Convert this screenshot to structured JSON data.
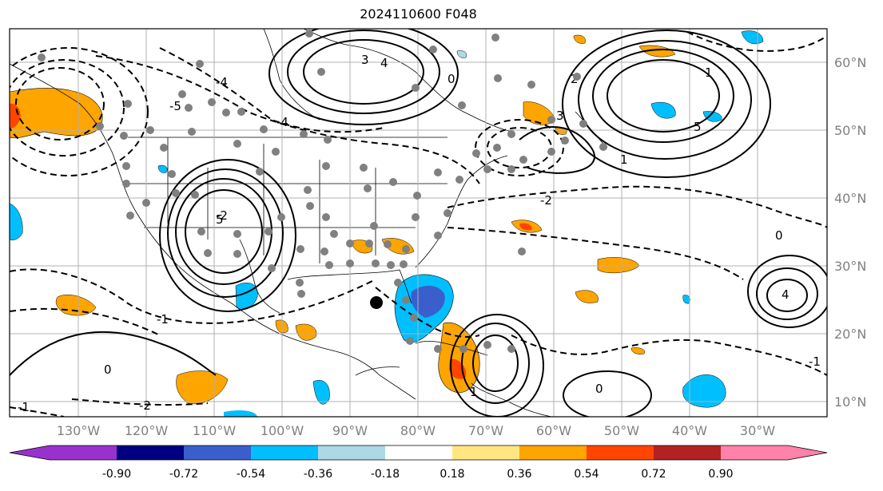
{
  "title": "2024110600 F048",
  "longitude_labels": [
    "130°W",
    "120°W",
    "110°W",
    "100°W",
    "90°W",
    "80°W",
    "70°W",
    "60°W",
    "50°W",
    "40°W",
    "30°W"
  ],
  "latitude_labels": [
    "60°N",
    "50°N",
    "40°N",
    "30°N",
    "20°N",
    "10°N"
  ],
  "contour_labels": [
    "-1",
    "-2",
    "-3",
    "-4",
    "-5",
    "0",
    "1",
    "2",
    "3",
    "4",
    "5"
  ],
  "colorbar": {
    "tick_labels": [
      "-0.90",
      "-0.72",
      "-0.54",
      "-0.36",
      "-0.18",
      "0.18",
      "0.36",
      "0.54",
      "0.72",
      "0.90"
    ],
    "colors": [
      "#9932cc",
      "#000080",
      "#3a5fcd",
      "#00bfff",
      "#add8e6",
      "#ffffff",
      "#ffe680",
      "#ffa500",
      "#ff4500",
      "#b22222",
      "#ff82ab"
    ]
  },
  "marker_colors": {
    "stations": "#808080",
    "center": "#000000"
  }
}
